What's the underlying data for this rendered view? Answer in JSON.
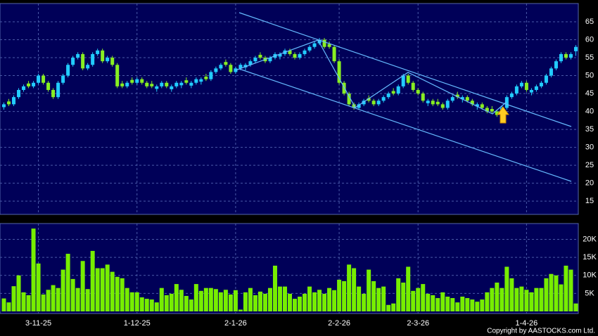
{
  "copyright": "Copyright by AASTOCKS.com Ltd.",
  "chart_data": [
    {
      "type": "candlestick",
      "up_color": "#22ccff",
      "down_color": "#88ee22",
      "grid": true,
      "ylim": [
        11.3,
        70.1
      ],
      "yticks": [
        15,
        20,
        25,
        30,
        35,
        40,
        45,
        50,
        55,
        60,
        65
      ],
      "open": [
        41.2,
        42.8,
        42,
        44,
        46,
        47.8,
        47,
        48,
        50,
        48,
        46,
        44,
        48,
        50,
        53,
        55,
        56,
        52,
        53,
        56,
        57,
        54,
        55,
        53,
        47.8,
        47,
        48.8,
        48,
        49,
        48,
        47.7,
        46.3,
        47,
        48,
        46.2,
        47,
        47.3,
        48.7,
        47.2,
        48,
        48.3,
        49.7,
        49,
        51,
        52,
        53.8,
        53,
        51,
        52,
        52.3,
        53,
        54,
        55.8,
        55,
        54,
        55,
        55.3,
        56,
        57,
        56,
        55,
        56,
        57,
        58,
        59,
        60,
        58.8,
        58,
        54,
        48,
        45,
        42,
        41,
        42,
        43.7,
        43,
        42,
        43,
        44,
        45.7,
        45,
        47,
        50,
        48,
        46,
        45,
        42.3,
        43,
        42.7,
        42,
        41,
        43,
        44.7,
        43.4,
        44,
        43,
        41.4,
        42,
        41,
        40.7,
        40,
        39,
        41,
        44,
        45,
        47,
        48,
        45.3,
        46,
        47,
        48,
        50,
        52,
        54,
        56,
        55,
        56.8
      ],
      "high": [
        42.5,
        43.5,
        44.5,
        46.5,
        47.5,
        48.5,
        48.5,
        50.5,
        50.5,
        48.5,
        46.5,
        48.5,
        50.5,
        53.5,
        55.5,
        56.5,
        56.5,
        53.5,
        56.5,
        57.5,
        57.5,
        55.5,
        55.5,
        53.5,
        48.5,
        48.5,
        49.5,
        49.5,
        49.5,
        48.5,
        48.5,
        47.5,
        48.5,
        48.5,
        47.5,
        48.5,
        48.5,
        49.5,
        48.5,
        49.5,
        49.5,
        50.5,
        51.5,
        52.5,
        53.5,
        54.5,
        53.5,
        52.5,
        53.5,
        53.5,
        54.5,
        55.5,
        56.5,
        55.5,
        55.5,
        56.5,
        56.5,
        57.5,
        57.5,
        56.5,
        56.5,
        57.5,
        58.5,
        59.5,
        60.5,
        60.5,
        59.5,
        58.5,
        54.5,
        48.5,
        45.5,
        42.5,
        42.5,
        43.5,
        44.5,
        43.5,
        43.5,
        44.5,
        45.5,
        46.5,
        47.5,
        50.5,
        50.5,
        48.5,
        46.5,
        45.5,
        43.5,
        43.5,
        43.5,
        42.5,
        43.5,
        44.5,
        45.5,
        44.5,
        44.5,
        43.5,
        42.5,
        42.5,
        41.5,
        41.5,
        40.5,
        41.5,
        44.5,
        45.5,
        47.5,
        48.5,
        48.5,
        46.5,
        47.5,
        48.5,
        50.5,
        52.5,
        54.5,
        56.5,
        56.5,
        56.5,
        58.5
      ],
      "low": [
        40.5,
        41.5,
        41.5,
        43.5,
        45.5,
        46.5,
        46.5,
        47.5,
        47.5,
        45.5,
        43.5,
        43.5,
        47.5,
        49.5,
        52.5,
        54.5,
        51.5,
        51.5,
        52.5,
        55.5,
        53.5,
        53.5,
        52.5,
        46.5,
        46.5,
        46.5,
        47.5,
        47.5,
        47.5,
        46.5,
        46.5,
        45.5,
        46.5,
        46.5,
        45.5,
        46.5,
        46.5,
        47.5,
        46.5,
        47.5,
        47.5,
        48.5,
        48.5,
        50.5,
        51.5,
        52.5,
        50.5,
        50.5,
        51.5,
        51.5,
        52.5,
        53.5,
        54.5,
        53.5,
        53.5,
        54.5,
        54.5,
        55.5,
        55.5,
        54.5,
        54.5,
        55.5,
        56.5,
        57.5,
        58.5,
        57.5,
        57.5,
        53.5,
        47.5,
        44.5,
        41.5,
        40.5,
        40.5,
        41.5,
        42.5,
        41.5,
        41.5,
        42.5,
        43.5,
        44.5,
        44.5,
        46.5,
        47.5,
        45.5,
        44.5,
        42.5,
        41.5,
        41.5,
        41.5,
        40.5,
        40.5,
        42.5,
        43.5,
        42.5,
        42.5,
        41.5,
        40.5,
        40.5,
        39.5,
        39.5,
        38.5,
        38.5,
        40.5,
        43.5,
        44.5,
        46.5,
        45.5,
        44.5,
        45.5,
        46.5,
        47.5,
        49.5,
        51.5,
        53.5,
        54.5,
        54.5,
        55.5
      ],
      "close": [
        42,
        42,
        44,
        46,
        47,
        47,
        48,
        50,
        48,
        46,
        44,
        48,
        50,
        53,
        55,
        56,
        52,
        53,
        56,
        57,
        54,
        55,
        53,
        47,
        47,
        48,
        48,
        49,
        48,
        47,
        47,
        47,
        48,
        47,
        47,
        48,
        48,
        48,
        48,
        49,
        49,
        49,
        51,
        52,
        53,
        53,
        51,
        52,
        53,
        53,
        54,
        55,
        55,
        54,
        55,
        56,
        56,
        57,
        56,
        55,
        56,
        57,
        58,
        59,
        60,
        58,
        58,
        54,
        48,
        45,
        42,
        41,
        42,
        43,
        43,
        42,
        43,
        44,
        45,
        45,
        47,
        50,
        48,
        46,
        45,
        43,
        43,
        42,
        42,
        41,
        43,
        44,
        44,
        44,
        43,
        42,
        42,
        41,
        40,
        40,
        39,
        41,
        44,
        45,
        47,
        48,
        46,
        46,
        47,
        48,
        50,
        52,
        54,
        56,
        55,
        56,
        58
      ]
    },
    {
      "type": "bar",
      "color": "#77ee00",
      "grid": true,
      "ylim": [
        0,
        24400
      ],
      "yticks": [
        {
          "value": 5000,
          "label": "5K"
        },
        {
          "value": 10000,
          "label": "10K"
        },
        {
          "value": 15000,
          "label": "15K"
        },
        {
          "value": 20000,
          "label": "20K"
        }
      ],
      "categories": [
        null,
        null,
        null,
        null,
        null,
        null,
        null,
        "3-11-25",
        null,
        null,
        null,
        null,
        null,
        null,
        null,
        null,
        null,
        null,
        null,
        null,
        null,
        null,
        null,
        null,
        null,
        null,
        null,
        "1-12-25",
        null,
        null,
        null,
        null,
        null,
        null,
        null,
        null,
        null,
        null,
        null,
        null,
        null,
        null,
        null,
        null,
        null,
        null,
        null,
        "2-1-26",
        null,
        null,
        null,
        null,
        null,
        null,
        null,
        null,
        null,
        null,
        null,
        null,
        null,
        null,
        null,
        null,
        null,
        null,
        null,
        null,
        "2-2-26",
        null,
        null,
        null,
        null,
        null,
        null,
        null,
        null,
        null,
        null,
        null,
        null,
        null,
        null,
        null,
        "2-3-26",
        null,
        null,
        null,
        null,
        null,
        null,
        null,
        null,
        null,
        null,
        null,
        null,
        null,
        null,
        null,
        null,
        null,
        null,
        null,
        null,
        null,
        "1-4-26",
        null,
        null,
        null,
        null,
        null,
        null,
        null,
        null,
        null,
        null
      ],
      "values": [
        3600,
        2500,
        7000,
        10000,
        5300,
        4500,
        23000,
        13300,
        4700,
        6000,
        7300,
        6500,
        11600,
        16000,
        9000,
        6500,
        14000,
        6200,
        16800,
        12000,
        12000,
        13000,
        11000,
        9600,
        9200,
        6500,
        5300,
        5300,
        3900,
        3500,
        3300,
        2500,
        6500,
        4500,
        4900,
        7600,
        6000,
        4300,
        3300,
        7600,
        5700,
        6500,
        6500,
        6200,
        5300,
        6000,
        4700,
        5900,
        500,
        5300,
        6500,
        4500,
        5500,
        4900,
        6500,
        12700,
        6900,
        6900,
        4900,
        3500,
        4100,
        4900,
        6900,
        5300,
        6000,
        4900,
        6500,
        5900,
        8800,
        8400,
        13000,
        12000,
        6900,
        4900,
        11600,
        8400,
        6500,
        6900,
        1800,
        2200,
        9200,
        8000,
        12400,
        5700,
        6500,
        7600,
        4900,
        4500,
        3700,
        5300,
        4100,
        3700,
        2500,
        4100,
        3700,
        3300,
        2700,
        3300,
        5300,
        6500,
        8000,
        6500,
        12400,
        9200,
        6500,
        6900,
        6000,
        5300,
        6500,
        6500,
        9200,
        10400,
        10000,
        7500,
        12700,
        11600,
        2200
      ]
    }
  ]
}
